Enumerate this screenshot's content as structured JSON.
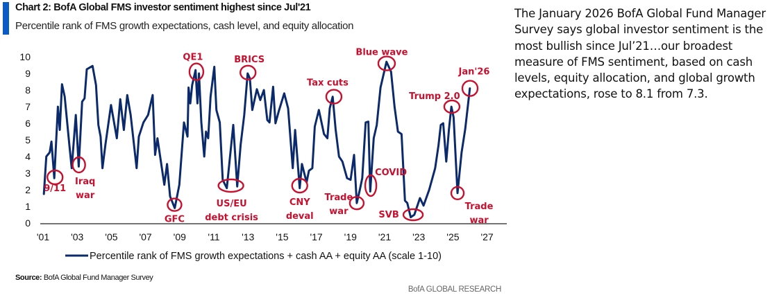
{
  "header": {
    "title": "Chart 2: BofA Global FMS investor sentiment highest since Jul'21",
    "subtitle": "Percentile rank of FMS growth expectations, cash level, and equity allocation"
  },
  "side_text": "The January 2026 BofA Global Fund Manager Survey says global investor sentiment is the most bullish since Jul’21…our broadest measure of FMS sentiment, based on cash levels, equity allocation, and global growth expectations, rose to 8.1 from 7.3.",
  "footer": {
    "source_label": "Source:",
    "source_text": "BofA Global Fund Manager Survey",
    "brand": "BofA GLOBAL RESEARCH"
  },
  "colors": {
    "line": "#0b2a6b",
    "annotation": "#c8102e",
    "accent": "#0a5bc4"
  },
  "chart_data": {
    "type": "line",
    "title": "Chart 2: BofA Global FMS investor sentiment highest since Jul'21",
    "subtitle": "Percentile rank of FMS growth expectations, cash level, and equity allocation",
    "xlabel": "",
    "ylabel": "",
    "xlim": [
      2000.9,
      2028
    ],
    "ylim": [
      0,
      10
    ],
    "yticks": [
      "0",
      "1",
      "2",
      "3",
      "4",
      "5",
      "6",
      "7",
      "8",
      "9",
      "10"
    ],
    "xticks": [
      {
        "value": 2001,
        "label": "'01"
      },
      {
        "value": 2003,
        "label": "'03"
      },
      {
        "value": 2005,
        "label": "'05"
      },
      {
        "value": 2007,
        "label": "'07"
      },
      {
        "value": 2009,
        "label": "'09"
      },
      {
        "value": 2011,
        "label": "'11"
      },
      {
        "value": 2013,
        "label": "'13"
      },
      {
        "value": 2015,
        "label": "'15"
      },
      {
        "value": 2017,
        "label": "'17"
      },
      {
        "value": 2019,
        "label": "'19"
      },
      {
        "value": 2021,
        "label": "'21"
      },
      {
        "value": 2023,
        "label": "'23"
      },
      {
        "value": 2025,
        "label": "'25"
      },
      {
        "value": 2027,
        "label": "'27"
      }
    ],
    "grid": false,
    "legend": "bottom",
    "series": [
      {
        "name": "Percentile rank of FMS growth expectations + cash AA + equity AA (scale 1-10)",
        "x": [
          2001.05,
          2001.19,
          2001.39,
          2001.49,
          2001.66,
          2001.87,
          2001.98,
          2002.11,
          2002.27,
          2002.54,
          2002.68,
          2002.92,
          2003.09,
          2003.29,
          2003.43,
          2003.56,
          2003.9,
          2004.1,
          2004.24,
          2004.37,
          2004.48,
          2004.65,
          2004.98,
          2005.32,
          2005.52,
          2005.73,
          2005.93,
          2006.13,
          2006.48,
          2006.61,
          2006.88,
          2007.15,
          2007.42,
          2007.56,
          2007.7,
          2008.1,
          2008.26,
          2008.44,
          2008.71,
          2008.98,
          2009.25,
          2009.46,
          2009.52,
          2009.62,
          2009.73,
          2009.93,
          2010.04,
          2010.13,
          2010.27,
          2010.44,
          2010.54,
          2010.67,
          2010.81,
          2011.03,
          2011.15,
          2011.35,
          2011.52,
          2011.76,
          2012.14,
          2012.37,
          2012.57,
          2012.78,
          2012.98,
          2013.11,
          2013.25,
          2013.52,
          2013.72,
          2013.93,
          2014.13,
          2014.26,
          2014.47,
          2014.61,
          2014.81,
          2015.12,
          2015.35,
          2015.62,
          2015.76,
          2016.03,
          2016.16,
          2016.43,
          2016.57,
          2016.77,
          2016.91,
          2017.15,
          2017.45,
          2017.65,
          2017.79,
          2017.96,
          2018.13,
          2018.33,
          2018.53,
          2018.8,
          2019.01,
          2019.21,
          2019.37,
          2019.55,
          2019.69,
          2019.89,
          2020.05,
          2020.16,
          2020.36,
          2020.54,
          2020.76,
          2021.11,
          2021.38,
          2021.58,
          2021.78,
          2021.99,
          2022.19,
          2022.33,
          2022.53,
          2022.74,
          2023.07,
          2023.28,
          2023.61,
          2023.96,
          2024.16,
          2024.29,
          2024.43,
          2024.61,
          2024.77,
          2024.91,
          2025.04,
          2025.27,
          2025.51,
          2025.72,
          2025.99
        ],
        "values": [
          1.75,
          4.0,
          4.25,
          4.9,
          2.7,
          7.0,
          5.6,
          8.35,
          7.6,
          4.7,
          3.3,
          6.5,
          3.4,
          7.3,
          7.5,
          9.25,
          9.45,
          8.3,
          5.9,
          5.2,
          3.3,
          4.7,
          7.1,
          5.1,
          7.45,
          5.6,
          7.7,
          6.5,
          3.3,
          5.2,
          6.05,
          6.5,
          7.7,
          4.1,
          5.1,
          2.3,
          3.55,
          1.6,
          0.9,
          2.3,
          6.05,
          5.2,
          8.15,
          7.2,
          8.3,
          9.2,
          7.2,
          9.0,
          6.05,
          4.0,
          5.5,
          5.1,
          7.6,
          9.4,
          6.8,
          6.05,
          2.6,
          2.1,
          5.9,
          2.2,
          4.7,
          6.5,
          9.0,
          8.7,
          6.8,
          8.05,
          7.4,
          8.0,
          6.2,
          6.05,
          8.2,
          6.0,
          6.75,
          7.8,
          6.9,
          3.3,
          5.6,
          2.1,
          3.55,
          2.45,
          3.15,
          3.3,
          5.8,
          6.8,
          5.35,
          5.1,
          6.9,
          7.6,
          5.65,
          4.0,
          3.7,
          2.7,
          2.6,
          4.1,
          1.2,
          2.0,
          2.7,
          6.05,
          6.1,
          1.9,
          5.1,
          5.9,
          8.15,
          9.7,
          9.1,
          7.0,
          5.5,
          5.35,
          1.35,
          1.2,
          0.35,
          0.5,
          1.5,
          1.05,
          2.0,
          3.3,
          4.7,
          5.9,
          6.0,
          3.7,
          5.65,
          7.0,
          6.35,
          1.8,
          4.25,
          5.65,
          8.1
        ]
      }
    ],
    "annotations": [
      {
        "lines": [
          "9/11"
        ],
        "x": 2001.7,
        "y": 2.75
      },
      {
        "lines": [
          "Iraq",
          "war"
        ],
        "x": 2003.1,
        "y": 3.5
      },
      {
        "lines": [
          "GFC"
        ],
        "x": 2008.7,
        "y": 1.1
      },
      {
        "lines": [
          "QE1"
        ],
        "x": 2009.98,
        "y": 9.1
      },
      {
        "lines": [
          "US/EU",
          "debt crisis"
        ],
        "x": 2012.0,
        "y": 2.25
      },
      {
        "lines": [
          "BRICS"
        ],
        "x": 2013.0,
        "y": 9.05
      },
      {
        "lines": [
          "CNY",
          "deval"
        ],
        "x": 2016.03,
        "y": 2.25
      },
      {
        "lines": [
          "Tax cuts"
        ],
        "x": 2018.03,
        "y": 7.6
      },
      {
        "lines": [
          "Trade",
          "war"
        ],
        "x": 2019.37,
        "y": 1.2
      },
      {
        "lines": [
          "COVID"
        ],
        "x": 2020.19,
        "y": 2.25
      },
      {
        "lines": [
          "Blue wave"
        ],
        "x": 2021.12,
        "y": 9.6
      },
      {
        "lines": [
          "SVB"
        ],
        "x": 2022.67,
        "y": 0.5
      },
      {
        "lines": [
          "Trump 2.0"
        ],
        "x": 2024.94,
        "y": 7.0
      },
      {
        "lines": [
          "Trade",
          "war"
        ],
        "x": 2025.27,
        "y": 1.8
      },
      {
        "lines": [
          "Jan'26"
        ],
        "x": 2026.0,
        "y": 8.1
      }
    ]
  }
}
